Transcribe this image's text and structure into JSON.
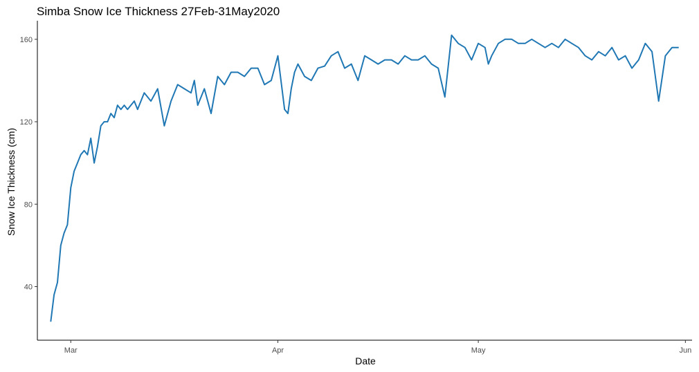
{
  "chart_data": {
    "type": "line",
    "title": "Simba Snow Ice Thickness 27Feb-31May2020",
    "xlabel": "Date",
    "ylabel": "Snow Ice Thickness (cm)",
    "x_range": [
      "2020-02-25",
      "2020-06-02"
    ],
    "ylim": [
      14,
      169
    ],
    "x_ticks": [
      {
        "label": "Mar",
        "date": "2020-03-01"
      },
      {
        "label": "Apr",
        "date": "2020-04-01"
      },
      {
        "label": "May",
        "date": "2020-05-01"
      },
      {
        "label": "Jun",
        "date": "2020-06-01"
      }
    ],
    "y_ticks": [
      40,
      80,
      120,
      160
    ],
    "grid": false,
    "line_color": "#1f77b4",
    "series": [
      {
        "x": [
          "2020-02-27",
          "2020-02-27T12",
          "2020-02-28",
          "2020-02-28T12",
          "2020-02-29",
          "2020-02-29T12",
          "2020-03-01",
          "2020-03-01T12",
          "2020-03-02",
          "2020-03-02T12",
          "2020-03-03",
          "2020-03-03T12",
          "2020-03-04",
          "2020-03-04T12",
          "2020-03-05",
          "2020-03-05T12",
          "2020-03-06",
          "2020-03-06T12",
          "2020-03-07",
          "2020-03-07T12",
          "2020-03-08",
          "2020-03-08T12",
          "2020-03-09",
          "2020-03-09T12",
          "2020-03-10",
          "2020-03-10T12",
          "2020-03-11",
          "2020-03-12",
          "2020-03-13",
          "2020-03-14",
          "2020-03-15",
          "2020-03-16",
          "2020-03-17",
          "2020-03-18",
          "2020-03-19",
          "2020-03-19T12",
          "2020-03-20",
          "2020-03-21",
          "2020-03-22",
          "2020-03-23",
          "2020-03-24",
          "2020-03-25",
          "2020-03-26",
          "2020-03-27",
          "2020-03-28",
          "2020-03-29",
          "2020-03-30",
          "2020-03-31",
          "2020-04-01",
          "2020-04-02",
          "2020-04-02T12",
          "2020-04-03",
          "2020-04-03T12",
          "2020-04-04",
          "2020-04-05",
          "2020-04-06",
          "2020-04-07",
          "2020-04-08",
          "2020-04-09",
          "2020-04-10",
          "2020-04-11",
          "2020-04-12",
          "2020-04-13",
          "2020-04-14",
          "2020-04-15",
          "2020-04-16",
          "2020-04-17",
          "2020-04-18",
          "2020-04-19",
          "2020-04-20",
          "2020-04-21",
          "2020-04-22",
          "2020-04-23",
          "2020-04-24",
          "2020-04-25",
          "2020-04-26",
          "2020-04-27",
          "2020-04-28",
          "2020-04-29",
          "2020-04-30",
          "2020-05-01",
          "2020-05-02",
          "2020-05-02T12",
          "2020-05-03",
          "2020-05-04",
          "2020-05-05",
          "2020-05-06",
          "2020-05-07",
          "2020-05-08",
          "2020-05-09",
          "2020-05-10",
          "2020-05-11",
          "2020-05-12",
          "2020-05-13",
          "2020-05-14",
          "2020-05-15",
          "2020-05-16",
          "2020-05-17",
          "2020-05-18",
          "2020-05-19",
          "2020-05-20",
          "2020-05-21",
          "2020-05-22",
          "2020-05-23",
          "2020-05-24",
          "2020-05-25",
          "2020-05-26",
          "2020-05-27",
          "2020-05-28",
          "2020-05-29",
          "2020-05-30",
          "2020-05-30T12",
          "2020-05-31"
        ],
        "y": [
          23,
          36,
          42,
          60,
          66,
          70,
          88,
          96,
          100,
          104,
          106,
          104,
          112,
          100,
          108,
          118,
          120,
          120,
          124,
          122,
          128,
          126,
          128,
          126,
          128,
          130,
          126,
          134,
          130,
          136,
          118,
          130,
          138,
          136,
          134,
          140,
          128,
          136,
          124,
          142,
          138,
          144,
          144,
          142,
          146,
          146,
          138,
          140,
          152,
          126,
          124,
          136,
          144,
          148,
          142,
          140,
          146,
          147,
          152,
          154,
          146,
          148,
          140,
          152,
          150,
          148,
          150,
          150,
          148,
          152,
          150,
          150,
          152,
          148,
          146,
          132,
          162,
          158,
          156,
          150,
          158,
          156,
          148,
          152,
          158,
          160,
          160,
          158,
          158,
          160,
          158,
          156,
          158,
          156,
          160,
          158,
          156,
          152,
          150,
          154,
          152,
          156,
          150,
          152,
          146,
          150,
          158,
          154,
          130,
          152,
          156,
          156,
          156
        ]
      }
    ]
  }
}
